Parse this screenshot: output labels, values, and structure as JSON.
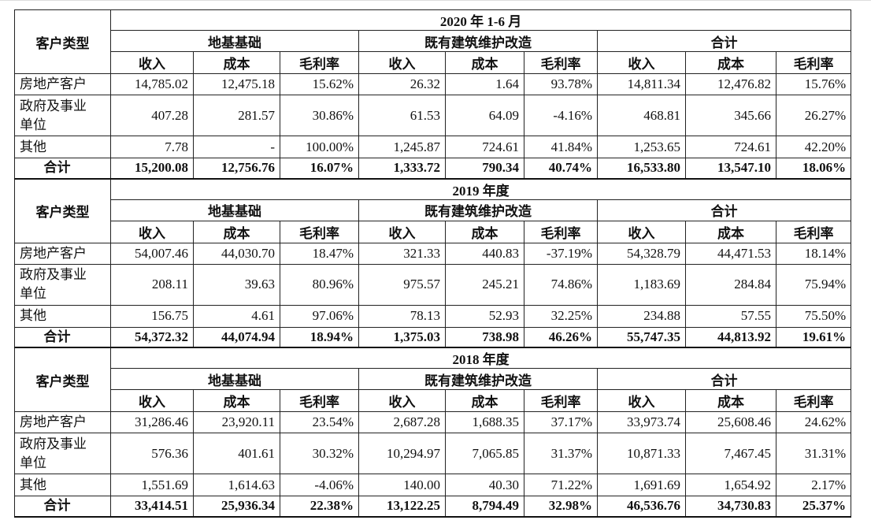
{
  "header": {
    "customer_type": "客户类型",
    "groups": [
      "地基基础",
      "既有建筑维护改造",
      "合计"
    ],
    "subs": [
      "收入",
      "成本",
      "毛利率"
    ]
  },
  "sections": [
    {
      "period": "2020 年 1-6 月",
      "rows": [
        {
          "label": "房地产客户",
          "cells": [
            "14,785.02",
            "12,475.18",
            "15.62%",
            "26.32",
            "1.64",
            "93.78%",
            "14,811.34",
            "12,476.82",
            "15.76%"
          ]
        },
        {
          "label": "政府及事业单位",
          "cells": [
            "407.28",
            "281.57",
            "30.86%",
            "61.53",
            "64.09",
            "-4.16%",
            "468.81",
            "345.66",
            "26.27%"
          ]
        },
        {
          "label": "其他",
          "cells": [
            "7.78",
            "-",
            "100.00%",
            "1,245.87",
            "724.61",
            "41.84%",
            "1,253.65",
            "724.61",
            "42.20%"
          ]
        },
        {
          "label": "合计",
          "cells": [
            "15,200.08",
            "12,756.76",
            "16.07%",
            "1,333.72",
            "790.34",
            "40.74%",
            "16,533.80",
            "13,547.10",
            "18.06%"
          ]
        }
      ]
    },
    {
      "period": "2019 年度",
      "rows": [
        {
          "label": "房地产客户",
          "cells": [
            "54,007.46",
            "44,030.70",
            "18.47%",
            "321.33",
            "440.83",
            "-37.19%",
            "54,328.79",
            "44,471.53",
            "18.14%"
          ]
        },
        {
          "label": "政府及事业单位",
          "cells": [
            "208.11",
            "39.63",
            "80.96%",
            "975.57",
            "245.21",
            "74.86%",
            "1,183.69",
            "284.84",
            "75.94%"
          ]
        },
        {
          "label": "其他",
          "cells": [
            "156.75",
            "4.61",
            "97.06%",
            "78.13",
            "52.93",
            "32.25%",
            "234.88",
            "57.55",
            "75.50%"
          ]
        },
        {
          "label": "合计",
          "cells": [
            "54,372.32",
            "44,074.94",
            "18.94%",
            "1,375.03",
            "738.98",
            "46.26%",
            "55,747.35",
            "44,813.92",
            "19.61%"
          ]
        }
      ]
    },
    {
      "period": "2018 年度",
      "rows": [
        {
          "label": "房地产客户",
          "cells": [
            "31,286.46",
            "23,920.11",
            "23.54%",
            "2,687.28",
            "1,688.35",
            "37.17%",
            "33,973.74",
            "25,608.46",
            "24.62%"
          ]
        },
        {
          "label": "政府及事业单位",
          "cells": [
            "576.36",
            "401.61",
            "30.32%",
            "10,294.97",
            "7,065.85",
            "31.37%",
            "10,871.33",
            "7,467.45",
            "31.31%"
          ]
        },
        {
          "label": "其他",
          "cells": [
            "1,551.69",
            "1,614.63",
            "-4.06%",
            "140.00",
            "40.30",
            "71.22%",
            "1,691.69",
            "1,654.92",
            "2.17%"
          ]
        },
        {
          "label": "合计",
          "cells": [
            "33,414.51",
            "25,936.34",
            "22.38%",
            "13,122.25",
            "8,794.49",
            "32.98%",
            "46,536.76",
            "34,730.83",
            "25.37%"
          ]
        }
      ]
    }
  ]
}
